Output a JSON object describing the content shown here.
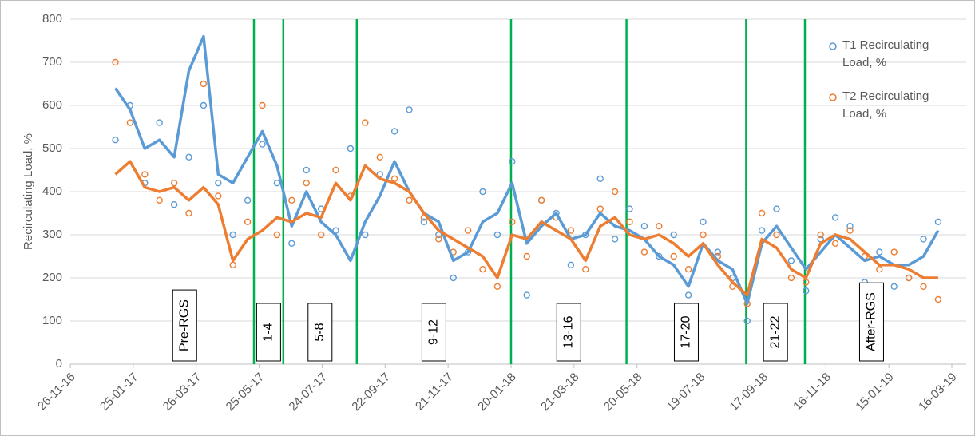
{
  "chart_data": {
    "type": "scatter",
    "y_label": "Recirculating Load, %",
    "xlim": [
      "2016-11-26",
      "2019-03-16"
    ],
    "xticks": [
      {
        "value": "2016-11-26",
        "label": "26-11-16"
      },
      {
        "value": "2017-01-25",
        "label": "25-01-17"
      },
      {
        "value": "2017-03-26",
        "label": "26-03-17"
      },
      {
        "value": "2017-05-25",
        "label": "25-05-17"
      },
      {
        "value": "2017-07-24",
        "label": "24-07-17"
      },
      {
        "value": "2017-09-22",
        "label": "22-09-17"
      },
      {
        "value": "2017-11-21",
        "label": "21-11-17"
      },
      {
        "value": "2018-01-20",
        "label": "20-01-18"
      },
      {
        "value": "2018-03-21",
        "label": "21-03-18"
      },
      {
        "value": "2018-05-20",
        "label": "20-05-18"
      },
      {
        "value": "2018-07-19",
        "label": "19-07-18"
      },
      {
        "value": "2018-09-17",
        "label": "17-09-18"
      },
      {
        "value": "2018-11-16",
        "label": "16-11-18"
      },
      {
        "value": "2019-01-15",
        "label": "15-01-19"
      },
      {
        "value": "2019-03-16",
        "label": "16-03-19"
      }
    ],
    "ylim": [
      0,
      800
    ],
    "yticks": [
      0,
      100,
      200,
      300,
      400,
      500,
      600,
      700,
      800
    ],
    "grid": true,
    "legend": "top-right",
    "x": [
      "2017-01-08",
      "2017-01-22",
      "2017-02-05",
      "2017-02-19",
      "2017-03-05",
      "2017-03-19",
      "2017-04-02",
      "2017-04-16",
      "2017-04-30",
      "2017-05-14",
      "2017-05-28",
      "2017-06-11",
      "2017-06-25",
      "2017-07-09",
      "2017-07-23",
      "2017-08-06",
      "2017-08-20",
      "2017-09-03",
      "2017-09-17",
      "2017-10-01",
      "2017-10-15",
      "2017-10-29",
      "2017-11-12",
      "2017-11-26",
      "2017-12-10",
      "2017-12-24",
      "2018-01-07",
      "2018-01-21",
      "2018-02-04",
      "2018-02-18",
      "2018-03-04",
      "2018-03-18",
      "2018-04-01",
      "2018-04-15",
      "2018-04-29",
      "2018-05-13",
      "2018-05-27",
      "2018-06-10",
      "2018-06-24",
      "2018-07-08",
      "2018-07-22",
      "2018-08-05",
      "2018-08-19",
      "2018-09-02",
      "2018-09-16",
      "2018-09-30",
      "2018-10-14",
      "2018-10-28",
      "2018-11-11",
      "2018-11-25",
      "2018-12-09",
      "2018-12-23",
      "2019-01-06",
      "2019-01-20",
      "2019-02-03",
      "2019-02-17",
      "2019-03-03"
    ],
    "series": [
      {
        "name": "T1 Recirculating Load, %",
        "color": "#5b9bd5",
        "values": [
          520,
          600,
          420,
          560,
          370,
          480,
          600,
          420,
          300,
          380,
          510,
          420,
          280,
          450,
          360,
          310,
          500,
          300,
          440,
          540,
          590,
          330,
          300,
          200,
          260,
          400,
          300,
          470,
          160,
          380,
          350,
          230,
          300,
          430,
          290,
          360,
          320,
          250,
          300,
          160,
          330,
          260,
          200,
          100,
          310,
          360,
          240,
          170,
          290,
          340,
          320,
          190,
          260,
          180,
          200,
          290,
          330
        ],
        "trend": [
          640,
          590,
          500,
          520,
          480,
          680,
          760,
          440,
          420,
          480,
          540,
          460,
          320,
          400,
          330,
          300,
          240,
          330,
          390,
          470,
          400,
          350,
          330,
          240,
          260,
          330,
          350,
          420,
          280,
          320,
          350,
          290,
          300,
          350,
          320,
          310,
          290,
          250,
          230,
          180,
          280,
          240,
          220,
          140,
          280,
          320,
          270,
          220,
          260,
          300,
          270,
          240,
          250,
          230,
          230,
          250,
          310
        ]
      },
      {
        "name": "T2 Recirculating Load, %",
        "color": "#ed7d31",
        "values": [
          700,
          560,
          440,
          380,
          420,
          350,
          650,
          390,
          230,
          330,
          600,
          300,
          380,
          420,
          300,
          450,
          390,
          560,
          480,
          430,
          380,
          340,
          290,
          260,
          310,
          220,
          180,
          330,
          250,
          380,
          340,
          310,
          220,
          360,
          400,
          330,
          260,
          320,
          250,
          220,
          300,
          250,
          180,
          140,
          350,
          300,
          200,
          190,
          300,
          280,
          310,
          250,
          220,
          260,
          200,
          180,
          150
        ],
        "trend": [
          440,
          470,
          410,
          400,
          410,
          380,
          410,
          370,
          240,
          290,
          310,
          340,
          330,
          350,
          340,
          420,
          380,
          460,
          430,
          420,
          400,
          350,
          310,
          290,
          270,
          250,
          200,
          300,
          290,
          330,
          310,
          290,
          240,
          320,
          340,
          300,
          290,
          300,
          280,
          250,
          280,
          230,
          190,
          160,
          290,
          270,
          220,
          200,
          280,
          300,
          290,
          260,
          230,
          230,
          220,
          200,
          200
        ]
      }
    ],
    "dividers": [
      "2017-05-20",
      "2017-06-17",
      "2017-08-26",
      "2018-01-20",
      "2018-05-10",
      "2018-09-01",
      "2018-10-27"
    ],
    "divider_color": "#00b050",
    "periods": [
      "Pre-RGS",
      "1-4",
      "5-8",
      "9-12",
      "13-16",
      "17-20",
      "21-22",
      "After-RGS"
    ]
  }
}
